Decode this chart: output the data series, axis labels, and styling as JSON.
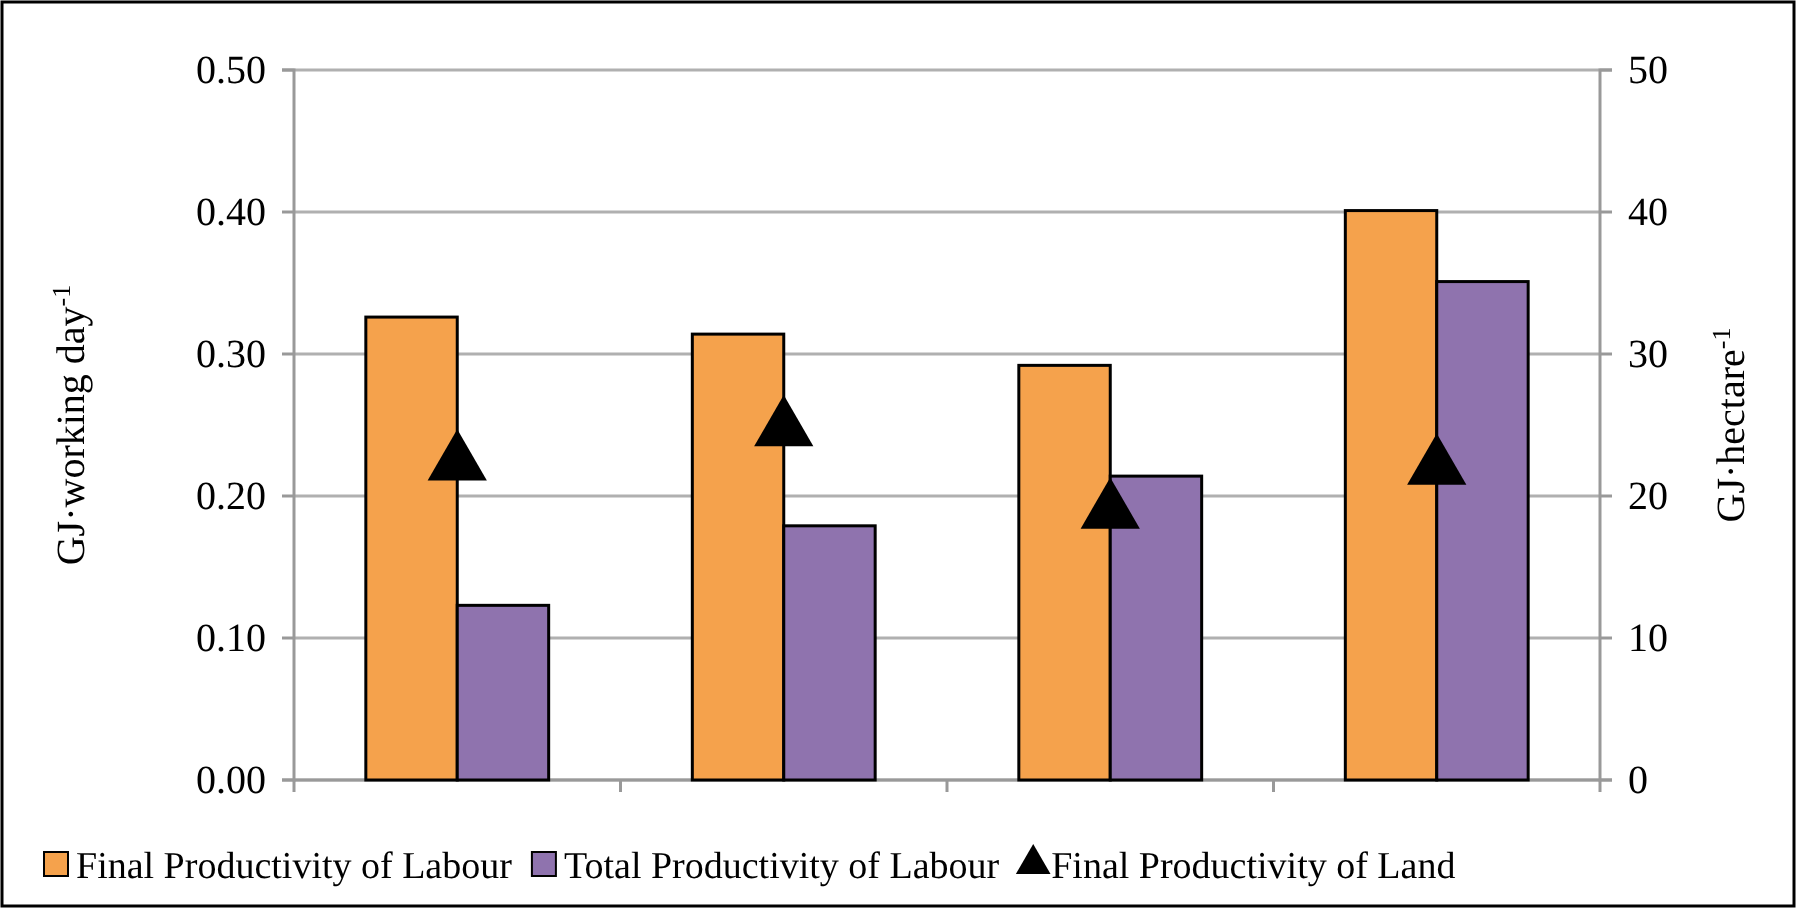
{
  "chart_data": {
    "type": "bar",
    "ylabel": "GJ·working day$^{-1}$",
    "y2label": "GJ·hectare$^{-1}$",
    "categories": [
      null,
      null,
      null,
      null
    ],
    "series": [
      {
        "name": "Final Productivity of Labour",
        "color": "#f5a24c",
        "values": [
          0.326,
          0.314,
          0.292,
          0.401
        ]
      },
      {
        "name": "Total Productivity of Labour",
        "color": "#8f73ae",
        "values": [
          0.123,
          0.179,
          0.214,
          0.351
        ]
      },
      {
        "name": "Final Productivity of Land",
        "type": "scatter",
        "axis": "y2",
        "color": "#000000",
        "marker": "triangle",
        "values": [
          22.3,
          24.7,
          18.9,
          22.0
        ]
      }
    ],
    "ylim": [
      0,
      0.5
    ],
    "yticks": [
      {
        "value": 0,
        "label": "0.00"
      },
      {
        "value": 0.1,
        "label": "0.10"
      },
      {
        "value": 0.2,
        "label": "0.20"
      },
      {
        "value": 0.3,
        "label": "0.30"
      },
      {
        "value": 0.4,
        "label": "0.40"
      },
      {
        "value": 0.5,
        "label": "0.50"
      }
    ],
    "y2lim": [
      0,
      50
    ],
    "y2ticks": [
      0,
      10,
      20,
      30,
      40,
      50
    ],
    "grid": "y",
    "legend": "bottom"
  }
}
